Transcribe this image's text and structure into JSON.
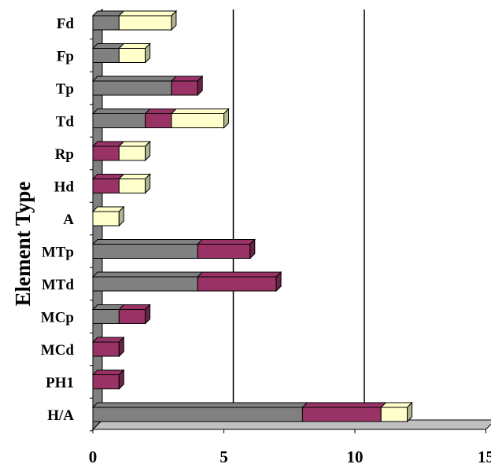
{
  "chart_data": {
    "type": "bar",
    "orientation": "horizontal",
    "stacked": true,
    "three_d": true,
    "ylabel": "Element Type",
    "xlabel": "",
    "xlim": [
      0,
      15
    ],
    "xticks": [
      "0",
      "5",
      "10",
      "15"
    ],
    "gridlines": [
      5,
      10
    ],
    "legend": "none",
    "categories": [
      "H/A",
      "PH1",
      "MCd",
      "MCp",
      "MTd",
      "MTp",
      "A",
      "Hd",
      "Rp",
      "Td",
      "Tp",
      "Fp",
      "Fd"
    ],
    "series": [
      {
        "color": "#808080",
        "values": [
          8,
          0,
          0,
          1,
          4,
          4,
          0,
          0,
          0,
          2,
          3,
          1,
          1
        ]
      },
      {
        "color": "#993366",
        "values": [
          3,
          1,
          1,
          1,
          3,
          2,
          0,
          1,
          1,
          1,
          1,
          0,
          0
        ]
      },
      {
        "color": "#FFFFCC",
        "values": [
          1,
          0,
          0,
          0,
          0,
          0,
          1,
          1,
          1,
          2,
          0,
          1,
          2
        ]
      }
    ]
  }
}
